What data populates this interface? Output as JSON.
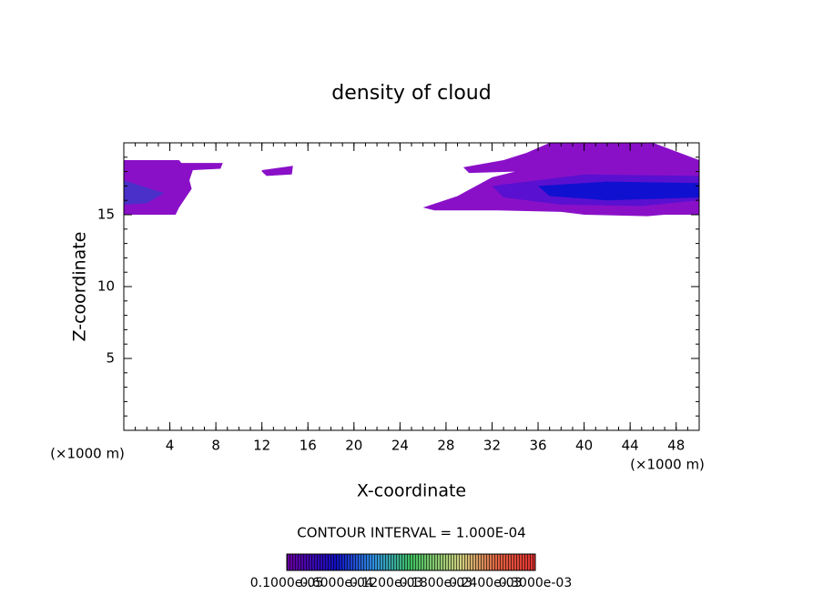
{
  "chart_data": {
    "type": "contour",
    "title": "density of cloud",
    "xlabel": "X-coordinate",
    "ylabel": "Z-coordinate",
    "x_unit": "(×1000 m)",
    "y_unit": "(×1000 m)",
    "xlim": [
      0,
      50
    ],
    "ylim": [
      0,
      20
    ],
    "xticks": [
      4,
      8,
      12,
      16,
      20,
      24,
      28,
      32,
      36,
      40,
      44,
      48
    ],
    "yticks": [
      5,
      10,
      15
    ],
    "contour_interval": "CONTOUR INTERVAL = 1.000E-04",
    "colorbar_labels": [
      "0.1000e-05",
      "0.6000e-04",
      "0.1200e-03",
      "0.1800e-03",
      "0.2400e-03",
      "0.3000e-03"
    ],
    "regions": [
      {
        "color": "#8a10c8",
        "x": [
          0,
          4.8,
          5,
          8.6,
          8.4,
          6,
          5.7,
          5.9,
          4.8,
          4.5,
          0
        ],
        "z": [
          18.8,
          18.8,
          18.6,
          18.6,
          18.2,
          18.1,
          17.4,
          16.8,
          15.5,
          15,
          15
        ]
      },
      {
        "color": "#4a30c8",
        "x": [
          0,
          1.5,
          3.5,
          2,
          0
        ],
        "z": [
          17.4,
          17,
          16.5,
          15.8,
          15.7
        ]
      },
      {
        "color": "#8a10c8",
        "x": [
          12,
          14.7,
          14.6,
          12.4,
          12
        ],
        "z": [
          18.1,
          18.4,
          17.8,
          17.7,
          18
        ]
      },
      {
        "color": "#8a10c8",
        "x": [
          26,
          29,
          32,
          34,
          30,
          29.5,
          33,
          35,
          37,
          46,
          50,
          50,
          47,
          45.5,
          40,
          38,
          32.5,
          27
        ],
        "z": [
          15.5,
          16.3,
          17.6,
          18,
          17.9,
          18.3,
          18.8,
          19.3,
          20,
          20,
          18.8,
          15,
          15,
          14.9,
          15,
          15.2,
          15.3,
          15.3
        ]
      },
      {
        "color": "#5a10d0",
        "x": [
          32,
          40,
          50,
          50,
          45,
          38,
          33
        ],
        "z": [
          17,
          17.8,
          17.7,
          16,
          15.6,
          15.7,
          16.2
        ]
      },
      {
        "color": "#1010d0",
        "x": [
          36,
          42,
          50,
          50,
          42,
          37
        ],
        "z": [
          17,
          17.3,
          17.2,
          16.2,
          16,
          16.3
        ]
      }
    ]
  }
}
